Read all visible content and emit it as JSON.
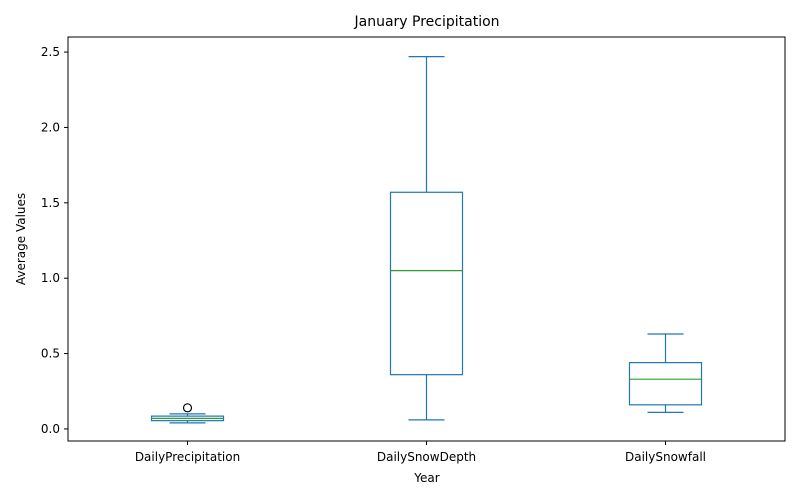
{
  "chart_data": {
    "type": "boxplot",
    "title": "January Precipitation",
    "xlabel": "Year",
    "ylabel": "Average Values",
    "ylim": [
      -0.08,
      2.6
    ],
    "yticks": [
      "0.0",
      "0.5",
      "1.0",
      "1.5",
      "2.0",
      "2.5"
    ],
    "grid": false,
    "categories": [
      "DailyPrecipitation",
      "DailySnowDepth",
      "DailySnowfall"
    ],
    "boxes": [
      {
        "category": "DailyPrecipitation",
        "whisker_low": 0.04,
        "q1": 0.055,
        "median": 0.07,
        "q3": 0.085,
        "whisker_high": 0.1,
        "outliers": [
          0.14
        ]
      },
      {
        "category": "DailySnowDepth",
        "whisker_low": 0.06,
        "q1": 0.36,
        "median": 1.05,
        "q3": 1.57,
        "whisker_high": 2.47,
        "outliers": []
      },
      {
        "category": "DailySnowfall",
        "whisker_low": 0.11,
        "q1": 0.16,
        "median": 0.33,
        "q3": 0.44,
        "whisker_high": 0.63,
        "outliers": []
      }
    ],
    "colors": {
      "box": "#1f77b4",
      "median": "#2ca02c",
      "outlier": "#000000"
    }
  }
}
